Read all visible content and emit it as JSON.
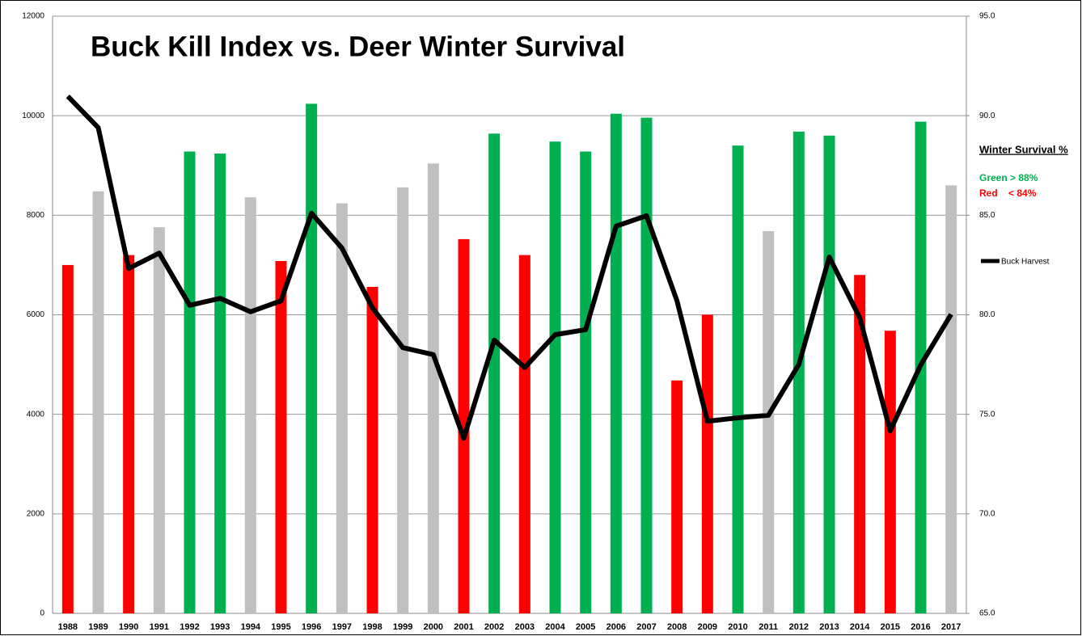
{
  "chart_data": {
    "type": "bar-line",
    "title": "Buck Kill Index vs. Deer Winter Survival",
    "categories": [
      "1988",
      "1989",
      "1990",
      "1991",
      "1992",
      "1993",
      "1994",
      "1995",
      "1996",
      "1997",
      "1998",
      "1999",
      "2000",
      "2001",
      "2002",
      "2003",
      "2004",
      "2005",
      "2006",
      "2007",
      "2008",
      "2009",
      "2010",
      "2011",
      "2012",
      "2013",
      "2014",
      "2015",
      "2016",
      "2017"
    ],
    "series": [
      {
        "name": "Winter Survival %",
        "type": "bar",
        "axis": "y2",
        "values": [
          82.5,
          86.2,
          83.0,
          84.4,
          88.2,
          88.1,
          85.9,
          82.7,
          90.6,
          85.6,
          81.4,
          86.4,
          87.6,
          83.8,
          89.1,
          83.0,
          88.7,
          88.2,
          90.1,
          89.9,
          76.7,
          80.0,
          88.5,
          84.2,
          89.2,
          89.0,
          82.0,
          79.2,
          89.7,
          86.5
        ],
        "colors": [
          "#ff0000",
          "#c0c0c0",
          "#ff0000",
          "#c0c0c0",
          "#00b050",
          "#00b050",
          "#c0c0c0",
          "#ff0000",
          "#00b050",
          "#c0c0c0",
          "#ff0000",
          "#c0c0c0",
          "#c0c0c0",
          "#ff0000",
          "#00b050",
          "#ff0000",
          "#00b050",
          "#00b050",
          "#00b050",
          "#00b050",
          "#ff0000",
          "#ff0000",
          "#00b050",
          "#c0c0c0",
          "#00b050",
          "#00b050",
          "#ff0000",
          "#ff0000",
          "#00b050",
          "#c0c0c0"
        ]
      },
      {
        "name": "Buck Harvest",
        "type": "line",
        "color": "#000000",
        "values": [
          10390,
          9760,
          6930,
          7240,
          6190,
          6330,
          6060,
          6280,
          8040,
          7340,
          6140,
          5340,
          5200,
          3520,
          5490,
          4940,
          5600,
          5700,
          7780,
          7990,
          6280,
          3860,
          3930,
          3980,
          5000,
          7160,
          5940,
          3670,
          4990,
          6010
        ]
      }
    ],
    "annotations": [
      {
        "text": "Green > 88%",
        "color": "#00b050"
      },
      {
        "text": "Red    < 84%",
        "color": "#ff0000"
      }
    ],
    "ylim": [
      0,
      12000
    ],
    "yticks": [
      0,
      2000,
      4000,
      6000,
      8000,
      10000,
      12000
    ],
    "y2lim": [
      65,
      95
    ],
    "y2ticks": [
      {
        "value": 65,
        "label": "65.0"
      },
      {
        "value": 70,
        "label": "70.0"
      },
      {
        "value": 75,
        "label": "75.0"
      },
      {
        "value": 80,
        "label": "80.0"
      },
      {
        "value": 85,
        "label": "85.0"
      },
      {
        "value": 90,
        "label": "90.0"
      },
      {
        "value": 95,
        "label": "95.0"
      }
    ],
    "grid": true
  }
}
